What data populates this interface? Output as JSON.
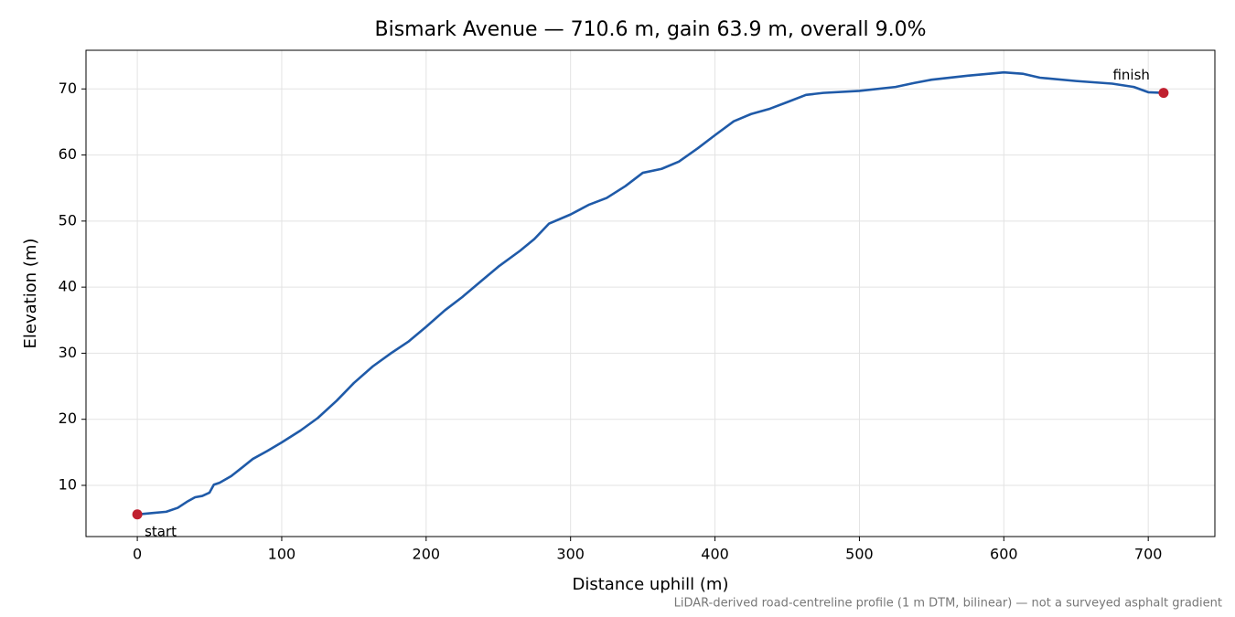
{
  "chart_data": {
    "type": "line",
    "title": "Bismark Avenue — 710.6 m, gain 63.9 m, overall 9.0%",
    "xlabel": "Distance uphill (m)",
    "ylabel": "Elevation (m)",
    "note": "LiDAR-derived road-centreline profile (1 m DTM, bilinear) — not a surveyed asphalt gradient",
    "x": [
      0,
      10,
      20,
      28,
      35,
      40,
      45,
      50,
      53,
      57,
      65,
      72,
      80,
      90,
      100,
      113,
      125,
      138,
      150,
      163,
      175,
      188,
      200,
      213,
      225,
      238,
      250,
      265,
      275,
      285,
      300,
      313,
      325,
      338,
      350,
      363,
      375,
      388,
      400,
      413,
      425,
      438,
      450,
      463,
      475,
      500,
      525,
      538,
      550,
      575,
      600,
      613,
      625,
      650,
      675,
      690,
      700,
      710.6
    ],
    "values": [
      5.6,
      5.8,
      6.0,
      6.6,
      7.6,
      8.2,
      8.4,
      8.9,
      10.1,
      10.4,
      11.4,
      12.6,
      14.0,
      15.2,
      16.5,
      18.3,
      20.2,
      22.8,
      25.5,
      28.0,
      29.9,
      31.8,
      34.0,
      36.5,
      38.5,
      40.9,
      43.1,
      45.5,
      47.3,
      49.6,
      51.0,
      52.5,
      53.5,
      55.3,
      57.3,
      57.9,
      59.0,
      61.0,
      63.0,
      65.1,
      66.2,
      67.0,
      68.0,
      69.1,
      69.4,
      69.7,
      70.3,
      70.9,
      71.4,
      72.0,
      72.5,
      72.3,
      71.7,
      71.2,
      70.8,
      70.3,
      69.5,
      69.4
    ],
    "color": "#1f5aa8",
    "markers": [
      {
        "x": 0,
        "y": 5.6,
        "label": "start"
      },
      {
        "x": 710.6,
        "y": 69.4,
        "label": "finish"
      }
    ],
    "marker_color": "#c0202f",
    "xlim": [
      -35.53,
      746.13
    ],
    "ylim": [
      2.25,
      75.85
    ],
    "xticks": [
      0,
      100,
      200,
      300,
      400,
      500,
      600,
      700
    ],
    "yticks": [
      10,
      20,
      30,
      40,
      50,
      60,
      70
    ],
    "grid": true
  }
}
